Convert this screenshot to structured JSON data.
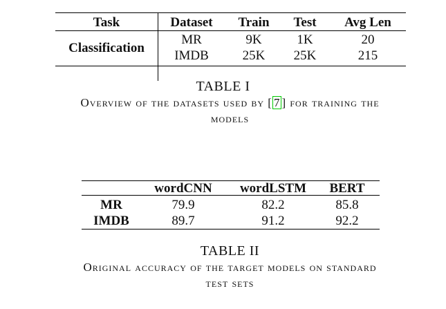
{
  "table1": {
    "headers": [
      "Task",
      "Dataset",
      "Train",
      "Test",
      "Avg Len"
    ],
    "task": "Classification",
    "rows": [
      [
        "MR",
        "9K",
        "1K",
        "20"
      ],
      [
        "IMDB",
        "25K",
        "25K",
        "215"
      ]
    ],
    "caption_label": "TABLE I",
    "caption_pre": "Overview of the datasets used by [",
    "caption_ref": "7",
    "caption_post": "] for training the",
    "caption_line2": "models"
  },
  "table2": {
    "headers": [
      "wordCNN",
      "wordLSTM",
      "BERT"
    ],
    "rows": [
      {
        "label": "MR",
        "values": [
          "79.9",
          "82.2",
          "85.8"
        ]
      },
      {
        "label": "IMDB",
        "values": [
          "89.7",
          "91.2",
          "92.2"
        ]
      }
    ],
    "caption_label": "TABLE II",
    "caption_line1": "Original accuracy of the target models on standard",
    "caption_line2": "test sets"
  }
}
